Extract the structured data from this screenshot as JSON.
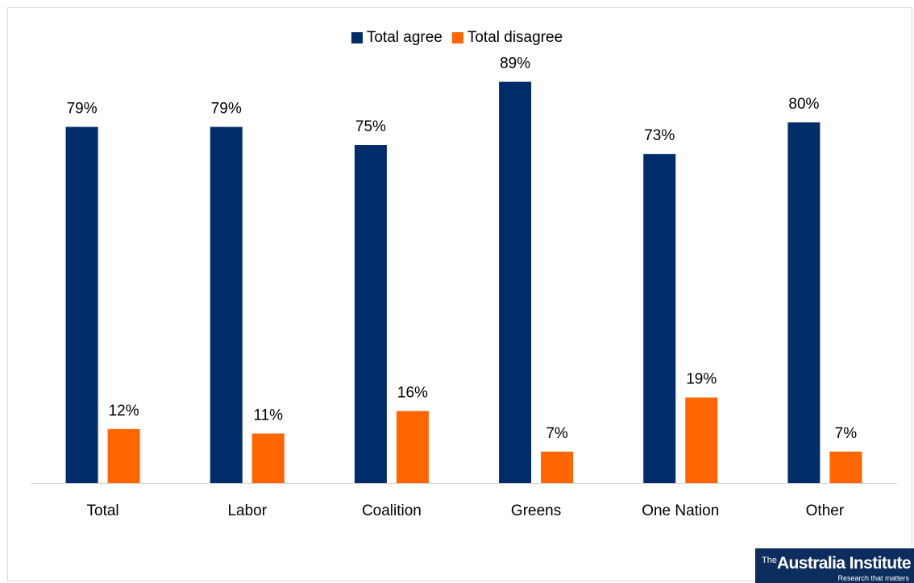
{
  "chart_data": {
    "type": "bar",
    "categories": [
      "Total",
      "Labor",
      "Coalition",
      "Greens",
      "One Nation",
      "Other"
    ],
    "series": [
      {
        "name": "Total agree",
        "values": [
          79,
          79,
          75,
          89,
          73,
          80
        ],
        "labels": [
          "79%",
          "79%",
          "75%",
          "89%",
          "73%",
          "80%"
        ],
        "color": "#002d6a"
      },
      {
        "name": "Total disagree",
        "values": [
          12,
          11,
          16,
          7,
          19,
          7
        ],
        "labels": [
          "12%",
          "11%",
          "16%",
          "7%",
          "19%",
          "7%"
        ],
        "color": "#ff6600"
      }
    ],
    "ylim": [
      0,
      100
    ],
    "grid": false,
    "legend": "top-center"
  },
  "logo": {
    "prefix": "The",
    "name": "Australia Institute",
    "tagline": "Research that matters"
  }
}
